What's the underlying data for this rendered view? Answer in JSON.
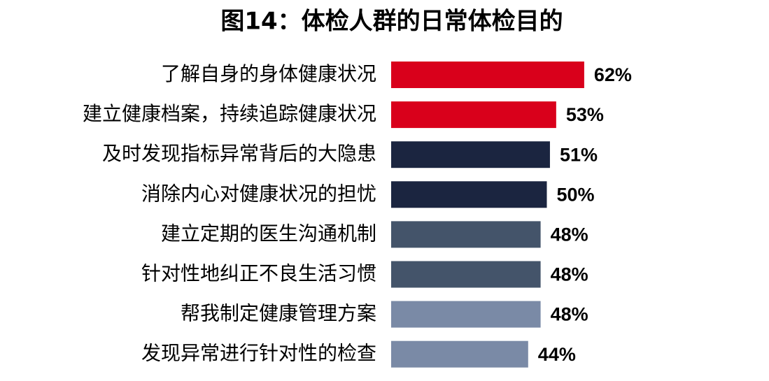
{
  "chart_data": {
    "type": "bar",
    "orientation": "horizontal",
    "title": "图14：体检人群的日常体检目的",
    "categories": [
      "了解自身的身体健康状况",
      "建立健康档案，持续追踪健康状况",
      "及时发现指标异常背后的大隐患",
      "消除内心对健康状况的担忧",
      "建立定期的医生沟通机制",
      "针对性地纠正不良生活习惯",
      "帮我制定健康管理方案",
      "发现异常进行针对性的检查"
    ],
    "values": [
      62,
      53,
      51,
      50,
      48,
      48,
      48,
      44
    ],
    "value_labels": [
      "62%",
      "53%",
      "51%",
      "50%",
      "48%",
      "48%",
      "48%",
      "44%"
    ],
    "colors": [
      "#d9001b",
      "#d9001b",
      "#1b2540",
      "#1b2540",
      "#44546a",
      "#44546a",
      "#7a8aa6",
      "#7a8aa6"
    ]
  }
}
